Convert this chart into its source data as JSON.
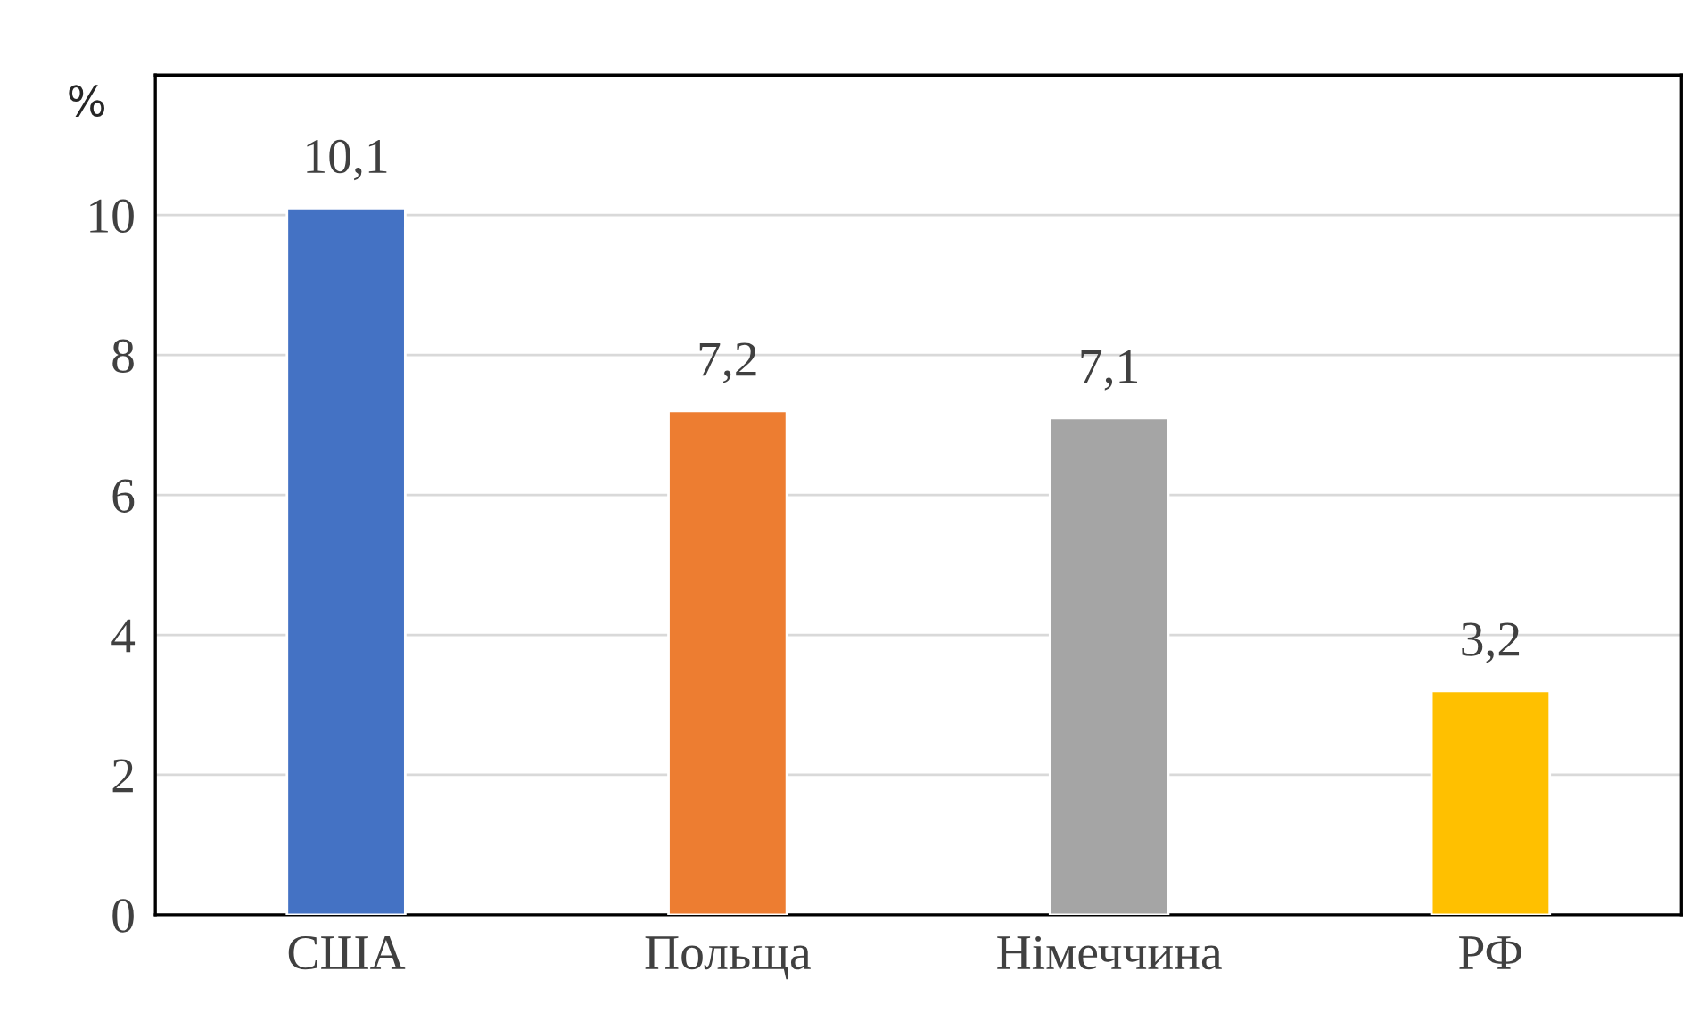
{
  "chart_data": {
    "type": "bar",
    "ylabel": "%",
    "categories": [
      "США",
      "Польща",
      "Німеччина",
      "РФ"
    ],
    "values": [
      10.1,
      7.2,
      7.1,
      3.2
    ],
    "colors": [
      "#4472c4",
      "#ed7d31",
      "#a5a5a5",
      "#ffc000"
    ],
    "value_labels": [
      "10,1",
      "7,2",
      "7,1",
      "3,2"
    ],
    "ylim": [
      0,
      12
    ],
    "yticks": [
      0,
      2,
      4,
      6,
      8,
      10
    ],
    "grid": "y",
    "legend": false
  }
}
